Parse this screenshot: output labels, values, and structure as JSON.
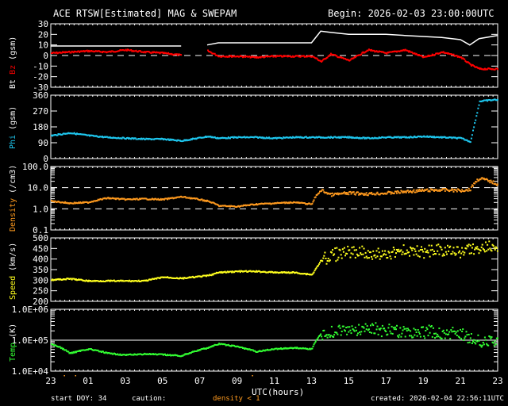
{
  "header": {
    "title": "ACE RTSW[Estimated] MAG & SWEPAM",
    "begin": "Begin: 2026-02-03 23:00:00UTC"
  },
  "footer": {
    "start_doy": "start DOY:  34",
    "caution": "caution:",
    "caution_note": "density < 1",
    "created": "created: 2026-02-04 22:56:11UTC",
    "xlabel": "UTC(hours)"
  },
  "colors": {
    "bt": "#ffffff",
    "bz": "#ff0000",
    "phi": "#1ec8f0",
    "density": "#ff9a1e",
    "speed": "#ffff1e",
    "temp": "#32ff32",
    "axes": "#ffffff"
  },
  "chart_data": [
    {
      "type": "line",
      "title": "Bt / Bz (gsm)",
      "ylabel": "Bt Bz (gsm)",
      "ylim": [
        -30,
        30
      ],
      "yticks": [
        "30",
        "20",
        "10",
        "0",
        "-10",
        "-20",
        "-30"
      ],
      "x_hours": [
        0,
        1,
        2,
        3,
        4,
        5,
        6,
        7,
        7.7,
        8.4,
        9,
        10,
        11,
        12,
        13,
        14,
        14.5,
        15,
        16,
        17,
        18,
        19,
        20,
        21,
        22,
        22.5,
        23,
        24
      ],
      "series": [
        {
          "name": "Bt",
          "values": [
            9,
            9,
            9,
            9,
            9,
            9,
            9,
            9,
            null,
            10,
            12,
            12,
            12,
            12,
            12,
            12,
            23,
            22,
            20,
            20,
            20,
            19,
            18,
            17,
            15,
            10,
            16,
            19
          ]
        },
        {
          "name": "Bz",
          "values": [
            3,
            4,
            5,
            4,
            6,
            4,
            3,
            1,
            null,
            5,
            0,
            0,
            -1,
            0,
            0,
            0,
            -5,
            2,
            -4,
            6,
            3,
            6,
            -1,
            4,
            -1,
            -8,
            -12,
            -12
          ]
        }
      ],
      "reference_lines": [
        0
      ]
    },
    {
      "type": "scatter",
      "title": "Phi (gsm)",
      "ylabel": "Phi (gsm)",
      "ylim": [
        0,
        360
      ],
      "yticks": [
        "360",
        "270",
        "180",
        "90",
        "0"
      ],
      "x_hours": [
        0,
        1,
        2,
        3,
        4,
        5,
        6,
        7,
        8.4,
        9,
        10,
        11,
        12,
        13,
        14,
        15,
        16,
        17,
        18,
        19,
        20,
        21,
        22,
        22.5,
        23,
        24
      ],
      "series": [
        {
          "name": "Phi",
          "values": [
            135,
            150,
            135,
            125,
            120,
            115,
            115,
            105,
            130,
            120,
            125,
            125,
            120,
            125,
            125,
            125,
            125,
            120,
            125,
            125,
            130,
            125,
            120,
            100,
            330,
            340
          ]
        }
      ]
    },
    {
      "type": "scatter",
      "title": "Density (/cm3)",
      "ylabel": "Density (/cm3)",
      "yscale": "log",
      "ylim": [
        0.1,
        100
      ],
      "yticks": [
        "100.0",
        "10.0",
        "1.0",
        "0.1"
      ],
      "x_hours": [
        0,
        1,
        2,
        3,
        4,
        5,
        6,
        7,
        8.4,
        9,
        10,
        11,
        12,
        13,
        14,
        14.5,
        15,
        16,
        17,
        18,
        19,
        20,
        21,
        22,
        22.5,
        23,
        24
      ],
      "series": [
        {
          "name": "Density",
          "values": [
            2.5,
            2.0,
            2.2,
            3.5,
            3.0,
            3.2,
            3.0,
            4.0,
            2.5,
            1.5,
            1.4,
            1.8,
            2.0,
            2.2,
            1.8,
            8.0,
            5.0,
            6.0,
            5.5,
            6.0,
            7.0,
            8.0,
            8.5,
            8.0,
            9.0,
            30,
            15
          ]
        }
      ],
      "reference_lines": [
        1.0,
        10.0
      ]
    },
    {
      "type": "scatter",
      "title": "Speed (km/s)",
      "ylabel": "Speed (km/s)",
      "ylim": [
        200,
        500
      ],
      "yticks": [
        "500",
        "450",
        "400",
        "350",
        "300",
        "250",
        "200"
      ],
      "x_hours": [
        0,
        1,
        2,
        3,
        4,
        5,
        6,
        7,
        8.4,
        9,
        10,
        11,
        12,
        13,
        14,
        14.5,
        15,
        16,
        17,
        18,
        19,
        20,
        21,
        22,
        23,
        24
      ],
      "series": [
        {
          "name": "Speed",
          "values": [
            305,
            310,
            300,
            300,
            300,
            300,
            318,
            312,
            325,
            340,
            345,
            345,
            340,
            340,
            330,
            400,
            420,
            440,
            430,
            430,
            445,
            440,
            445,
            440,
            460,
            455
          ]
        }
      ]
    },
    {
      "type": "scatter",
      "title": "Temp (K)",
      "ylabel": "Temp (K)",
      "yscale": "log",
      "ylim": [
        10000,
        1000000
      ],
      "yticks": [
        "1.0E+06",
        "1.0E+05",
        "1.0E+04"
      ],
      "x_hours": [
        0,
        1,
        2,
        3,
        4,
        5,
        6,
        7,
        8.4,
        9,
        10,
        11,
        12,
        13,
        14,
        14.5,
        15,
        16,
        17,
        18,
        19,
        20,
        21,
        22,
        23,
        24
      ],
      "series": [
        {
          "name": "Temp",
          "values": [
            80000,
            40000,
            55000,
            40000,
            35000,
            38000,
            36000,
            33000,
            60000,
            80000,
            65000,
            45000,
            55000,
            60000,
            55000,
            170000,
            200000,
            220000,
            240000,
            220000,
            180000,
            200000,
            190000,
            150000,
            95000,
            100000
          ]
        }
      ],
      "reference_lines": [
        100000
      ]
    }
  ],
  "x_axis": {
    "ticks": [
      "23",
      "01",
      "03",
      "05",
      "07",
      "09",
      "11",
      "13",
      "15",
      "17",
      "19",
      "21",
      "23"
    ],
    "label": "UTC(hours)"
  },
  "panel_labels": {
    "p1_bt": "Bt",
    "p1_bz": "Bz",
    "p1_unit": "(gsm)",
    "p2": "Phi",
    "p2_unit": "(gsm)",
    "p3": "Density",
    "p3_unit": "(/cm3)",
    "p4": "Speed",
    "p4_unit": "(km/s)",
    "p5": "Temp",
    "p5_unit": "(K)"
  }
}
